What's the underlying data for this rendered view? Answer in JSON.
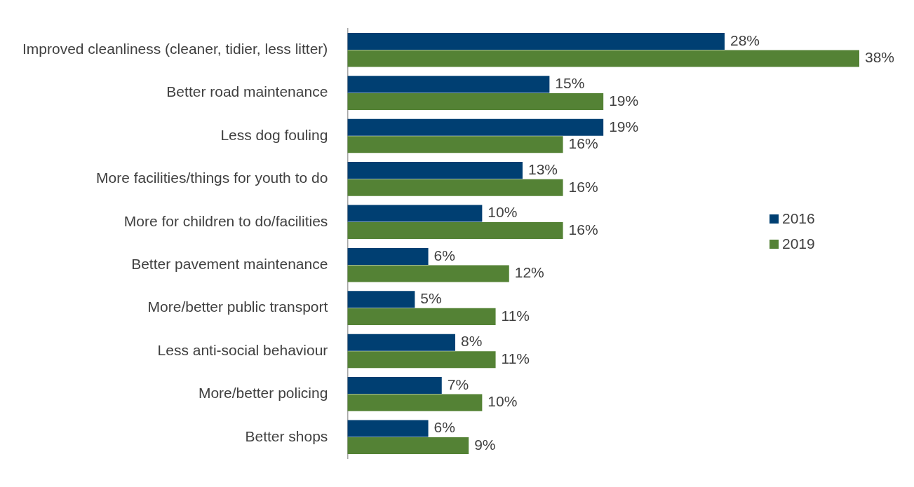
{
  "chart_data": {
    "type": "bar",
    "orientation": "horizontal",
    "categories": [
      "Improved cleanliness (cleaner, tidier, less litter)",
      "Better road maintenance",
      "Less dog fouling",
      "More facilities/things for youth to do",
      "More for children to do/facilities",
      "Better pavement maintenance",
      "More/better public transport",
      "Less anti-social behaviour",
      "More/better policing",
      "Better shops"
    ],
    "series": [
      {
        "name": "2016",
        "color": "#003f72",
        "values": [
          28,
          15,
          19,
          13,
          10,
          6,
          5,
          8,
          7,
          6
        ],
        "value_labels": [
          "28%",
          "15%",
          "19%",
          "13%",
          "10%",
          "6%",
          "5%",
          "8%",
          "7%",
          "6%"
        ]
      },
      {
        "name": "2019",
        "color": "#548235",
        "values": [
          38,
          19,
          16,
          16,
          16,
          12,
          11,
          11,
          10,
          9
        ],
        "value_labels": [
          "38%",
          "19%",
          "16%",
          "16%",
          "16%",
          "12%",
          "11%",
          "11%",
          "10%",
          "9%"
        ]
      }
    ],
    "legend": "right",
    "tick_labels": "y"
  }
}
